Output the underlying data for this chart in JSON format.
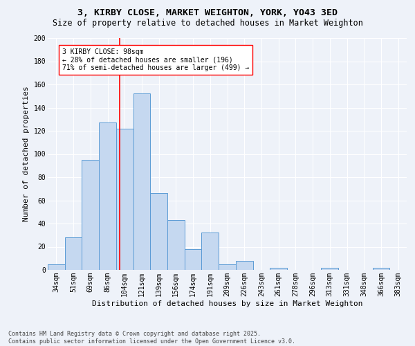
{
  "title1": "3, KIRBY CLOSE, MARKET WEIGHTON, YORK, YO43 3ED",
  "title2": "Size of property relative to detached houses in Market Weighton",
  "xlabel": "Distribution of detached houses by size in Market Weighton",
  "ylabel": "Number of detached properties",
  "footer": "Contains HM Land Registry data © Crown copyright and database right 2025.\nContains public sector information licensed under the Open Government Licence v3.0.",
  "categories": [
    "34sqm",
    "51sqm",
    "69sqm",
    "86sqm",
    "104sqm",
    "121sqm",
    "139sqm",
    "156sqm",
    "174sqm",
    "191sqm",
    "209sqm",
    "226sqm",
    "243sqm",
    "261sqm",
    "278sqm",
    "296sqm",
    "313sqm",
    "331sqm",
    "348sqm",
    "366sqm",
    "383sqm"
  ],
  "values": [
    5,
    28,
    95,
    127,
    122,
    152,
    66,
    43,
    18,
    32,
    5,
    8,
    0,
    2,
    0,
    0,
    2,
    0,
    0,
    2,
    0
  ],
  "bar_color": "#c5d8f0",
  "bar_edge_color": "#5b9bd5",
  "vline_x": 3.72,
  "vline_color": "red",
  "annotation_text": "3 KIRBY CLOSE: 98sqm\n← 28% of detached houses are smaller (196)\n71% of semi-detached houses are larger (499) →",
  "annotation_box_color": "white",
  "annotation_box_edge": "red",
  "ylim": [
    0,
    200
  ],
  "yticks": [
    0,
    20,
    40,
    60,
    80,
    100,
    120,
    140,
    160,
    180,
    200
  ],
  "bg_color": "#eef2f9",
  "grid_color": "white",
  "title_fontsize": 9.5,
  "subtitle_fontsize": 8.5,
  "axis_label_fontsize": 8,
  "tick_fontsize": 7,
  "footer_fontsize": 6,
  "annotation_fontsize": 7
}
